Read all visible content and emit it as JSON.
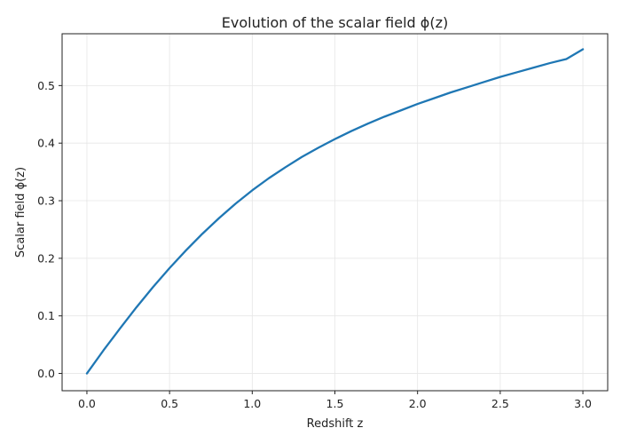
{
  "chart_data": {
    "type": "line",
    "title": "Evolution of the scalar field ϕ(z)",
    "xlabel": "Redshift z",
    "ylabel": "Scalar field ϕ(z)",
    "xlim": [
      -0.15,
      3.15
    ],
    "ylim": [
      -0.03,
      0.59
    ],
    "xticks": [
      0.0,
      0.5,
      1.0,
      1.5,
      2.0,
      2.5,
      3.0
    ],
    "xtick_labels": [
      "0.0",
      "0.5",
      "1.0",
      "1.5",
      "2.0",
      "2.5",
      "3.0"
    ],
    "yticks": [
      0.0,
      0.1,
      0.2,
      0.3,
      0.4,
      0.5
    ],
    "ytick_labels": [
      "0.0",
      "0.1",
      "0.2",
      "0.3",
      "0.4",
      "0.5"
    ],
    "grid": true,
    "legend": "none",
    "series": [
      {
        "color": "#1f77b4",
        "x": [
          0.0,
          0.1,
          0.2,
          0.3,
          0.4,
          0.5,
          0.6,
          0.7,
          0.8,
          0.9,
          1.0,
          1.1,
          1.2,
          1.3,
          1.4,
          1.5,
          1.6,
          1.7,
          1.8,
          1.9,
          2.0,
          2.1,
          2.2,
          2.3,
          2.4,
          2.5,
          2.6,
          2.7,
          2.8,
          2.9,
          3.0
        ],
        "y": [
          0.0,
          0.04,
          0.078,
          0.115,
          0.15,
          0.183,
          0.214,
          0.243,
          0.27,
          0.295,
          0.318,
          0.339,
          0.358,
          0.376,
          0.392,
          0.407,
          0.421,
          0.434,
          0.446,
          0.457,
          0.468,
          0.478,
          0.488,
          0.497,
          0.506,
          0.515,
          0.523,
          0.531,
          0.539,
          0.546,
          0.563
        ]
      }
    ]
  }
}
